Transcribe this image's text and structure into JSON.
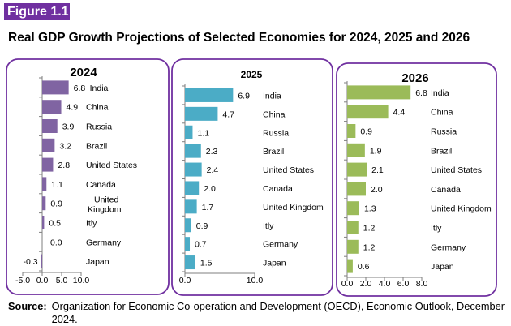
{
  "figure_label": "Figure 1.1",
  "title": "Real GDP Growth Projections of Selected Economies for 2024, 2025 and 2026",
  "source_label": "Source:",
  "source_text": "Organization for Economic Co-operation and Development (OECD), Economic Outlook, December 2024.",
  "colors": {
    "frame": "#7030a0",
    "y2024": "#8064a2",
    "y2025": "#4bacc6",
    "y2026": "#9bbb59",
    "badge": "#7030a0"
  },
  "chart_data": [
    {
      "type": "bar",
      "orientation": "horizontal",
      "title": "2024",
      "categories": [
        "India",
        "China",
        "Russia",
        "Brazil",
        "United States",
        "Canada",
        "United Kingdom",
        "Itly",
        "Germany",
        "Japan"
      ],
      "values": [
        6.8,
        4.9,
        3.9,
        3.2,
        2.8,
        1.1,
        0.9,
        0.5,
        0.0,
        -0.3
      ],
      "labels": [
        "6.8",
        "4.9",
        "3.9",
        "3.2",
        "2.8",
        "1.1",
        "0.9",
        "0.5",
        "0.0",
        "-0.3"
      ],
      "xlim": [
        -5,
        10
      ],
      "xticks": [
        "-5.0",
        "0.0",
        "5.0",
        "10.0"
      ],
      "color": "#8064a2"
    },
    {
      "type": "bar",
      "orientation": "horizontal",
      "title": "2025",
      "categories": [
        "India",
        "China",
        "Russia",
        "Brazil",
        "United States",
        "Canada",
        "United Kingdom",
        "Itly",
        "Germany",
        "Japan"
      ],
      "values": [
        6.9,
        4.7,
        1.1,
        2.3,
        2.4,
        2.0,
        1.7,
        0.9,
        0.7,
        1.5
      ],
      "labels": [
        "6.9",
        "4.7",
        "1.1",
        "2.3",
        "2.4",
        "2.0",
        "1.7",
        "0.9",
        "0.7",
        "1.5"
      ],
      "xlim": [
        0,
        10
      ],
      "xticks": [
        "0.0",
        "10.0"
      ],
      "color": "#4bacc6"
    },
    {
      "type": "bar",
      "orientation": "horizontal",
      "title": "2026",
      "categories": [
        "India",
        "China",
        "Russia",
        "Brazil",
        "United States",
        "Canada",
        "United Kingdom",
        "Itly",
        "Germany",
        "Japan"
      ],
      "values": [
        6.8,
        4.4,
        0.9,
        1.9,
        2.1,
        2.0,
        1.3,
        1.2,
        1.2,
        0.6
      ],
      "labels": [
        "6.8",
        "4.4",
        "0.9",
        "1.9",
        "2.1",
        "2.0",
        "1.3",
        "1.2",
        "1.2",
        "0.6"
      ],
      "xlim": [
        0,
        8
      ],
      "xticks": [
        "0.0",
        "2.0",
        "4.0",
        "6.0",
        "8.0"
      ],
      "color": "#9bbb59"
    }
  ]
}
